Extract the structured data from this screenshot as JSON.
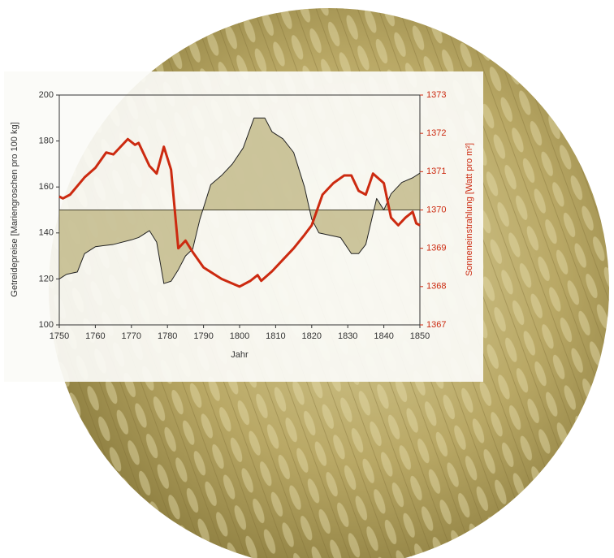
{
  "chart_data": {
    "type": "line",
    "x_label": "Jahr",
    "y_label": "Getreidepreise [Mariengroschen pro 100 kg]",
    "y2_label": "Sonneneinstrahlung [Watt pro m²]",
    "xlim": [
      1750,
      1850
    ],
    "xticks": [
      1750,
      1760,
      1770,
      1780,
      1790,
      1800,
      1810,
      1820,
      1830,
      1840,
      1850
    ],
    "ylim": [
      100,
      200
    ],
    "yticks": [
      100,
      120,
      140,
      160,
      180,
      200
    ],
    "y2lim": [
      1367,
      1373
    ],
    "y2ticks": [
      1367,
      1368,
      1369,
      1370,
      1371,
      1372,
      1373
    ],
    "reference_y": 150,
    "series": [
      {
        "color": "#222222",
        "axis": "y",
        "fill": "#a89a55",
        "x": [
          1750,
          1752,
          1755,
          1757,
          1760,
          1765,
          1770,
          1772,
          1775,
          1777,
          1779,
          1781,
          1783,
          1785,
          1787,
          1789,
          1792,
          1795,
          1798,
          1801,
          1804,
          1807,
          1809,
          1812,
          1815,
          1818,
          1820,
          1822,
          1825,
          1828,
          1831,
          1833,
          1835,
          1838,
          1840,
          1842,
          1845,
          1848,
          1850
        ],
        "values": [
          120,
          122,
          123,
          131,
          134,
          135,
          137,
          138,
          141,
          136,
          118,
          119,
          124,
          130,
          133,
          146,
          161,
          165,
          170,
          177,
          190,
          190,
          184,
          181,
          175,
          160,
          146,
          140,
          139,
          138,
          131,
          131,
          135,
          155,
          150,
          157,
          162,
          164,
          166
        ]
      },
      {
        "color": "#cc2a10",
        "axis": "y2",
        "x": [
          1750,
          1751,
          1753,
          1757,
          1760,
          1763,
          1765,
          1769,
          1771,
          1772,
          1775,
          1777,
          1779,
          1781,
          1783,
          1785,
          1787,
          1790,
          1795,
          1800,
          1803,
          1805,
          1806,
          1809,
          1812,
          1815,
          1818,
          1820,
          1823,
          1826,
          1829,
          1831,
          1833,
          1835,
          1837,
          1840,
          1842,
          1844,
          1846,
          1848,
          1849,
          1850
        ],
        "values": [
          1370.35,
          1370.3,
          1370.4,
          1370.85,
          1371.1,
          1371.5,
          1371.45,
          1371.85,
          1371.7,
          1371.75,
          1371.15,
          1370.95,
          1371.65,
          1371.05,
          1369.0,
          1369.2,
          1368.9,
          1368.5,
          1368.2,
          1368.0,
          1368.15,
          1368.3,
          1368.15,
          1368.4,
          1368.7,
          1369.0,
          1369.35,
          1369.6,
          1370.4,
          1370.7,
          1370.9,
          1370.9,
          1370.5,
          1370.4,
          1370.95,
          1370.7,
          1369.8,
          1369.6,
          1369.8,
          1369.95,
          1369.65,
          1369.6
        ]
      }
    ]
  }
}
